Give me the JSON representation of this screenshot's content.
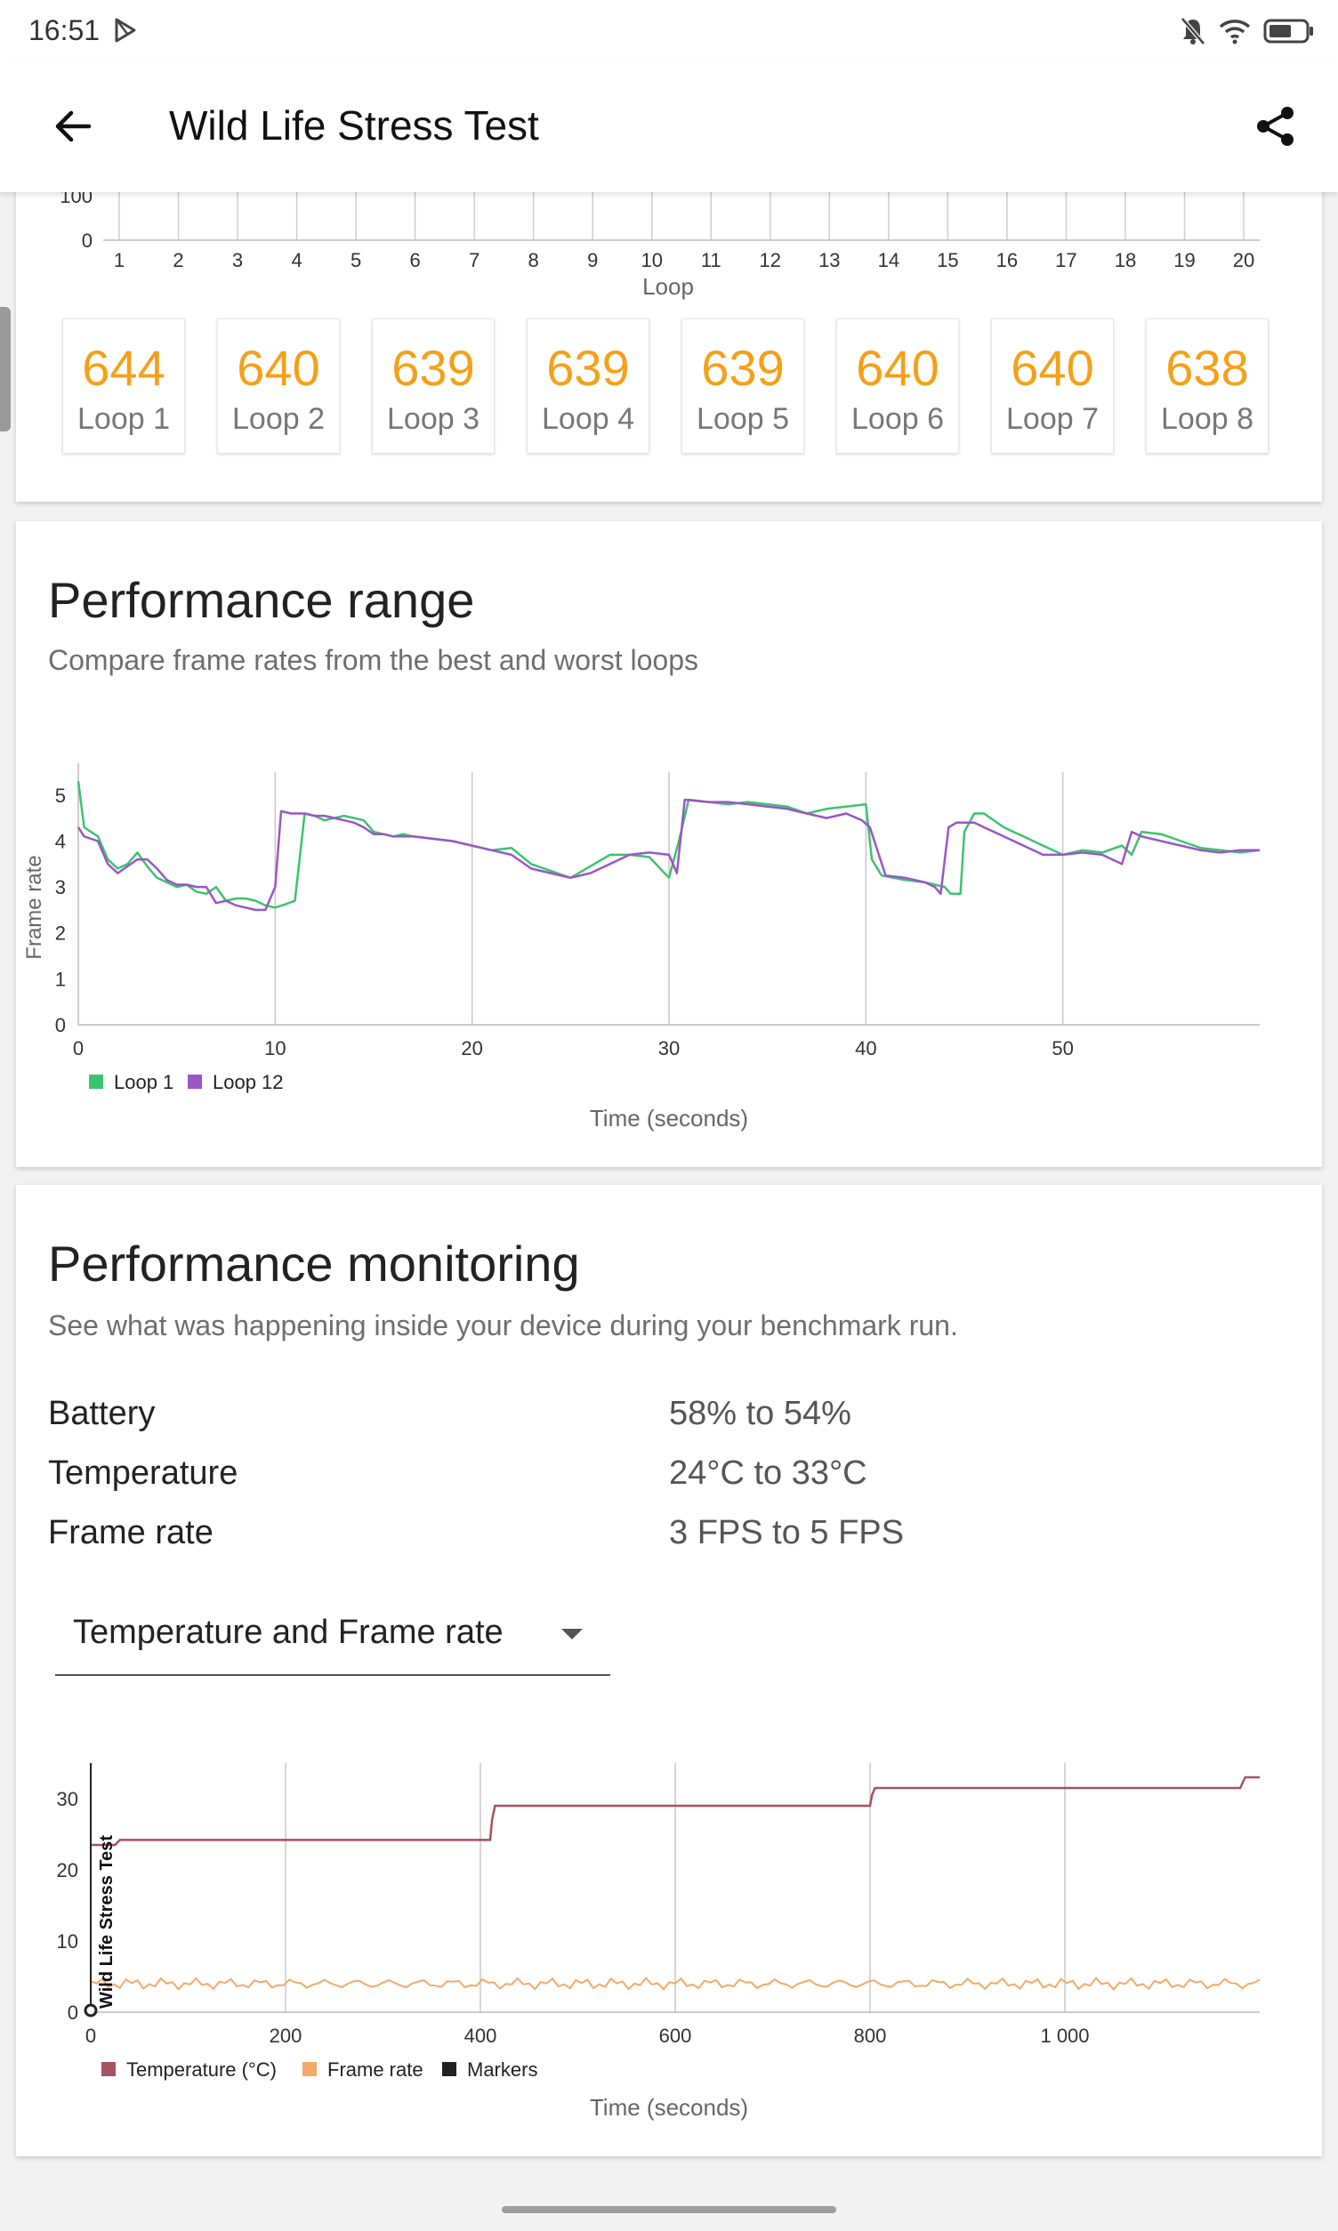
{
  "status_bar": {
    "time": "16:51",
    "icons": [
      "play-store-icon",
      "bell-off-icon",
      "wifi-icon",
      "battery-icon"
    ]
  },
  "app_bar": {
    "title": "Wild Life Stress Test",
    "back_icon": "arrow-left-icon",
    "share_icon": "share-icon"
  },
  "loop_scores": {
    "chart_partial": {
      "y_tick_labels": [
        "100",
        "0"
      ],
      "x_tick_labels": [
        "1",
        "2",
        "3",
        "4",
        "5",
        "6",
        "7",
        "8",
        "9",
        "10",
        "11",
        "12",
        "13",
        "14",
        "15",
        "16",
        "17",
        "18",
        "19",
        "20"
      ],
      "xlabel": "Loop"
    },
    "boxes": [
      {
        "score": "644",
        "label": "Loop 1"
      },
      {
        "score": "640",
        "label": "Loop 2"
      },
      {
        "score": "639",
        "label": "Loop 3"
      },
      {
        "score": "639",
        "label": "Loop 4"
      },
      {
        "score": "639",
        "label": "Loop 5"
      },
      {
        "score": "640",
        "label": "Loop 6"
      },
      {
        "score": "640",
        "label": "Loop 7"
      },
      {
        "score": "638",
        "label": "Loop 8"
      }
    ],
    "score_color": "#f5a019"
  },
  "performance_range": {
    "title": "Performance range",
    "subtitle": "Compare frame rates from the best and worst loops"
  },
  "performance_monitoring": {
    "title": "Performance monitoring",
    "subtitle": "See what was happening inside your device during your benchmark run.",
    "rows": [
      {
        "label": "Battery",
        "value": "58% to 54%"
      },
      {
        "label": "Temperature",
        "value": "24°C to 33°C"
      },
      {
        "label": "Frame rate",
        "value": "3 FPS to 5 FPS"
      }
    ],
    "dropdown": {
      "selected": "Temperature and Frame rate"
    }
  },
  "chart_data": [
    {
      "type": "line",
      "ylabel": "Frame rate",
      "xlabel": "Time (seconds)",
      "xlim": [
        0,
        60
      ],
      "ylim": [
        0,
        5.5
      ],
      "x_ticks": [
        0,
        10,
        20,
        30,
        40,
        50
      ],
      "y_ticks": [
        0,
        1,
        2,
        3,
        4,
        5
      ],
      "grid": "vertical",
      "legend": "bottom-left",
      "series": [
        {
          "name": "Loop 1",
          "color": "#3cc36e",
          "x": [
            0,
            0.3,
            1,
            1.5,
            2,
            2.5,
            3,
            3.5,
            4,
            4.5,
            5,
            5.5,
            6,
            6.5,
            7,
            7.5,
            8,
            8.5,
            9,
            9.5,
            10,
            10.5,
            11,
            11.5,
            12,
            12.5,
            13,
            13.5,
            14,
            14.5,
            15,
            15.5,
            16,
            16.5,
            17,
            18,
            19,
            20,
            21,
            22,
            23,
            24,
            25,
            26,
            27,
            28,
            29,
            30,
            30.5,
            31,
            32,
            33,
            34,
            35,
            36,
            37,
            38,
            39,
            40,
            40.3,
            40.8,
            42,
            43,
            43.5,
            44,
            44.3,
            44.8,
            45,
            45.5,
            46,
            47,
            48,
            49,
            50,
            51,
            52,
            53,
            53.5,
            54,
            55,
            56,
            57,
            58,
            59,
            60
          ],
          "y": [
            5.3,
            4.3,
            4.1,
            3.6,
            3.4,
            3.5,
            3.75,
            3.45,
            3.2,
            3.1,
            3.0,
            3.05,
            2.9,
            2.85,
            3.0,
            2.7,
            2.75,
            2.75,
            2.7,
            2.6,
            2.55,
            2.62,
            2.7,
            4.6,
            4.55,
            4.45,
            4.5,
            4.55,
            4.5,
            4.45,
            4.2,
            4.15,
            4.1,
            4.15,
            4.1,
            4.05,
            4.0,
            3.9,
            3.8,
            3.85,
            3.5,
            3.35,
            3.2,
            3.45,
            3.7,
            3.7,
            3.65,
            3.2,
            4.0,
            4.9,
            4.85,
            4.8,
            4.85,
            4.8,
            4.75,
            4.6,
            4.7,
            4.75,
            4.8,
            3.6,
            3.25,
            3.15,
            3.1,
            3.05,
            3.0,
            2.85,
            2.85,
            4.2,
            4.6,
            4.6,
            4.3,
            4.1,
            3.9,
            3.7,
            3.8,
            3.75,
            3.9,
            3.7,
            4.2,
            4.15,
            4.0,
            3.85,
            3.8,
            3.75,
            3.8
          ]
        },
        {
          "name": "Loop 12",
          "color": "#9a56c6",
          "x": [
            0,
            0.3,
            1,
            1.5,
            2,
            2.5,
            3,
            3.5,
            4,
            4.5,
            5,
            5.5,
            6,
            6.5,
            7,
            7.5,
            8,
            8.5,
            9,
            9.5,
            10,
            10.3,
            10.8,
            11.5,
            12,
            12.5,
            13,
            13.5,
            14,
            14.5,
            15,
            15.5,
            16,
            16.5,
            17,
            18,
            19,
            20,
            21,
            22,
            23,
            24,
            25,
            26,
            27,
            28,
            29,
            30,
            30.4,
            30.8,
            32,
            33,
            34,
            35,
            36,
            37,
            38,
            39,
            39.8,
            40.2,
            41,
            42,
            43,
            43.5,
            43.8,
            44.2,
            44.6,
            45,
            45.5,
            46,
            47,
            48,
            49,
            50,
            51,
            52,
            53,
            53.5,
            54,
            55,
            56,
            57,
            58,
            59,
            60
          ],
          "y": [
            4.3,
            4.1,
            4.0,
            3.5,
            3.3,
            3.45,
            3.6,
            3.6,
            3.4,
            3.15,
            3.05,
            3.05,
            3.0,
            3.0,
            2.65,
            2.7,
            2.6,
            2.55,
            2.5,
            2.5,
            3.0,
            4.65,
            4.6,
            4.6,
            4.55,
            4.55,
            4.5,
            4.45,
            4.4,
            4.3,
            4.15,
            4.15,
            4.1,
            4.1,
            4.1,
            4.05,
            4.0,
            3.9,
            3.8,
            3.7,
            3.4,
            3.3,
            3.2,
            3.3,
            3.5,
            3.7,
            3.75,
            3.7,
            3.3,
            4.9,
            4.85,
            4.85,
            4.8,
            4.75,
            4.7,
            4.6,
            4.5,
            4.6,
            4.45,
            4.3,
            3.25,
            3.2,
            3.1,
            3.0,
            2.85,
            4.3,
            4.4,
            4.4,
            4.4,
            4.3,
            4.1,
            3.9,
            3.7,
            3.7,
            3.75,
            3.7,
            3.5,
            4.2,
            4.1,
            4.0,
            3.9,
            3.8,
            3.75,
            3.8,
            3.8
          ]
        }
      ]
    },
    {
      "type": "line",
      "xlabel": "Time (seconds)",
      "xlim": [
        0,
        1200
      ],
      "ylim": [
        0,
        35
      ],
      "x_ticks": [
        0,
        200,
        400,
        600,
        800,
        1000
      ],
      "x_tick_labels": [
        "0",
        "200",
        "400",
        "600",
        "800",
        "1 000"
      ],
      "y_ticks": [
        0,
        10,
        20,
        30
      ],
      "grid": "vertical",
      "legend": "bottom-left",
      "marker": {
        "x": 0,
        "label": "Wild Life Stress Test"
      },
      "series": [
        {
          "name": "Temperature (°C)",
          "color": "#a8515f",
          "x": [
            0,
            25,
            30,
            410,
            412,
            415,
            800,
            802,
            805,
            1180,
            1185,
            1200
          ],
          "y": [
            23.5,
            23.5,
            24.2,
            24.2,
            27.0,
            29.0,
            29.0,
            30.5,
            31.5,
            31.5,
            33.0,
            33.0
          ]
        },
        {
          "name": "Frame rate",
          "color": "#f5a968",
          "x": [
            0,
            1200
          ],
          "y": [
            4.0,
            4.0
          ],
          "range": [
            3,
            5
          ]
        },
        {
          "name": "Markers",
          "color": "#222222",
          "x": [],
          "y": []
        }
      ]
    }
  ]
}
